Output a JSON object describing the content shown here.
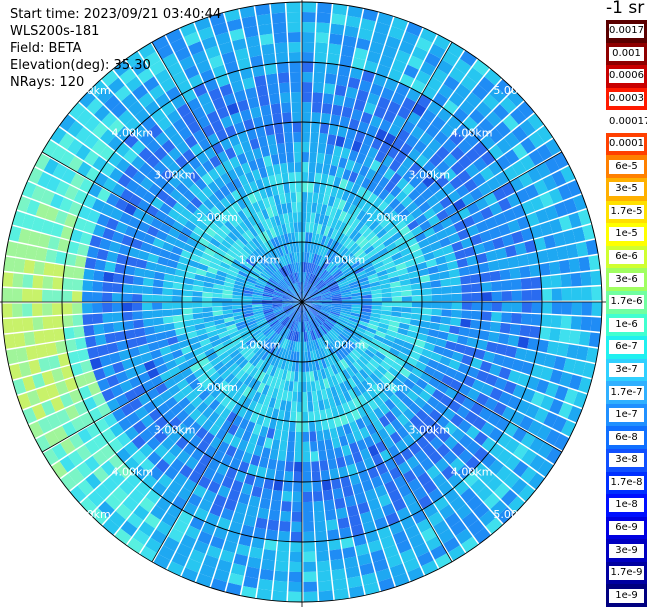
{
  "header": {
    "start_time": "Start time: 2023/09/21 03:40:44",
    "instrument": "WLS200s-181",
    "field": "Field: BETA",
    "elevation": "Elevation(deg): 35.30",
    "nrays": "NRays: 120"
  },
  "colorbar": {
    "unit_label": "-1 sr",
    "labels": [
      "0.0017",
      "0.001",
      "0.0006",
      "0.0003",
      "0.00017",
      "0.0001",
      "6e-5",
      "3e-5",
      "1.7e-5",
      "1e-5",
      "6e-6",
      "3e-6",
      "1.7e-6",
      "1e-6",
      "6e-7",
      "3e-7",
      "1.7e-7",
      "1e-7",
      "6e-8",
      "3e-8",
      "1.7e-8",
      "1e-8",
      "6e-9",
      "3e-9",
      "1.7e-9",
      "1e-9"
    ],
    "colors": [
      "#5a0000",
      "#8e0000",
      "#c80000",
      "#ff1a00",
      "#ffffff",
      "#ff4000",
      "#ff8000",
      "#ffb000",
      "#ffe000",
      "#ffff00",
      "#d0ff30",
      "#a0ff60",
      "#70ffa0",
      "#40ffd0",
      "#20f0f0",
      "#30d0ff",
      "#30b0ff",
      "#2090ff",
      "#1070ff",
      "#1050ff",
      "#0030ff",
      "#0010ff",
      "#0000e0",
      "#0000c0",
      "#0000a0",
      "#000080"
    ]
  },
  "chart_data": {
    "type": "heatmap",
    "projection": "polar PPI scan",
    "field": "BETA",
    "elevation_deg": 35.3,
    "n_rays": 120,
    "range_rings_km": [
      1.0,
      2.0,
      3.0,
      4.0,
      5.0
    ],
    "ring_labels": [
      "1.00km",
      "2.00km",
      "3.00km",
      "4.00km",
      "5.00km"
    ],
    "radial_spokes_deg": [
      0,
      30,
      60,
      90,
      120,
      150,
      180,
      210,
      240,
      270,
      300,
      330
    ],
    "value_summary": {
      "inner_0_2km": "1e-7 to 3e-7",
      "middle_2_4km": "1e-8 to 1e-7",
      "outer_west_4_5km": "3e-7 to 1e-6",
      "outer_elsewhere": "1e-8 to 1e-7"
    }
  }
}
